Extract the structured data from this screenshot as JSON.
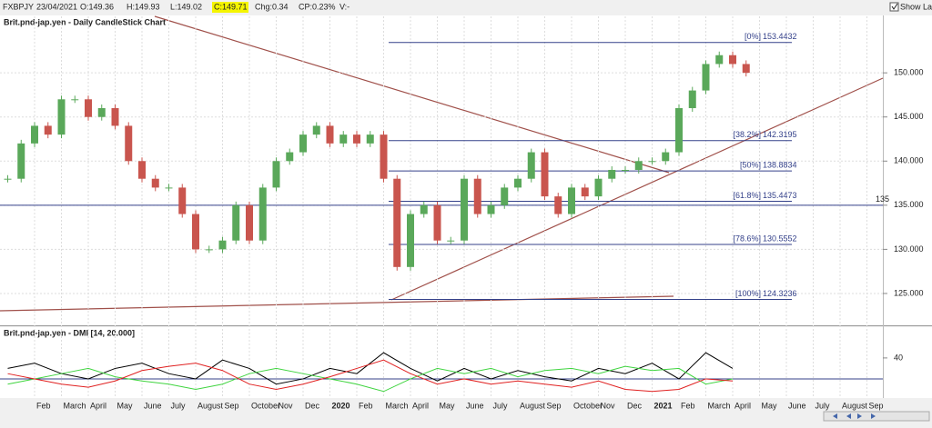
{
  "toolbar": {
    "symbol": "FXBPJY",
    "date": "23/04/2021",
    "open": "O:149.36",
    "high": "H:149.93",
    "low": "L:149.02",
    "close": "C:149.71",
    "change": "Chg:0.34",
    "change_pct": "CP:0.23%",
    "volume": "V:-",
    "show_last": "Show Last"
  },
  "chart_data": {
    "type": "candlestick",
    "title": "Brit.pnd-jap.yen - Daily CandleStick Chart",
    "closes": [
      138,
      142,
      144,
      143,
      147,
      147,
      145,
      146,
      144,
      140,
      138,
      137,
      137,
      134,
      130,
      130,
      131,
      135,
      131,
      137,
      140,
      141,
      143,
      144,
      142,
      143,
      142,
      143,
      138,
      128,
      134,
      135,
      131,
      131,
      138,
      134,
      135,
      137,
      138,
      141,
      136,
      134,
      137,
      136,
      138,
      139,
      139,
      140,
      140,
      141,
      146,
      148,
      151,
      152,
      151,
      150
    ],
    "up_color": "#5aa85a",
    "down_color": "#c9554e",
    "ylim": [
      121.7,
      156.4
    ],
    "yticks": [
      {
        "value": 125,
        "label": "125.000"
      },
      {
        "value": 130,
        "label": "130.000"
      },
      {
        "value": 135,
        "label": "135.000"
      },
      {
        "value": 140,
        "label": "140.000"
      },
      {
        "value": 145,
        "label": "145.000"
      },
      {
        "value": 150,
        "label": "150.000"
      }
    ],
    "fib_levels": [
      {
        "label": "[0%]",
        "value": 153.4432
      },
      {
        "label": "[38.2%]",
        "value": 142.3195
      },
      {
        "label": "[50%]",
        "value": 138.8834
      },
      {
        "label": "[61.8%]",
        "value": 135.4473
      },
      {
        "label": "[78.6%]",
        "value": 130.5552
      },
      {
        "label": "[100%]",
        "value": 124.3236
      }
    ],
    "hline": {
      "value": 135,
      "label": "135"
    },
    "categories": [
      "Feb",
      "March",
      "April",
      "May",
      "June",
      "July",
      "August",
      "Sep",
      "October",
      "Nov",
      "Dec",
      "2020",
      "Feb",
      "March",
      "April",
      "May",
      "June",
      "July",
      "August",
      "Sep",
      "October",
      "Nov",
      "Dec",
      "2021",
      "Feb",
      "March",
      "April",
      "May",
      "June",
      "July",
      "August",
      "Sep"
    ]
  },
  "dmi": {
    "title": "Brit.pnd-jap.yen - DMI [14, 20.000]",
    "ylim": [
      2.6,
      59
    ],
    "yticks": [
      40
    ],
    "level": 20,
    "series": [
      {
        "color": "#000000",
        "values": [
          30,
          35,
          25,
          20,
          30,
          35,
          25,
          20,
          38,
          30,
          15,
          20,
          30,
          25,
          45,
          30,
          18,
          30,
          20,
          28,
          22,
          18,
          30,
          25,
          35,
          20,
          45,
          30
        ]
      },
      {
        "color": "#3fd43f",
        "values": [
          15,
          20,
          25,
          30,
          22,
          18,
          15,
          10,
          15,
          25,
          30,
          25,
          20,
          15,
          8,
          20,
          30,
          25,
          30,
          22,
          28,
          30,
          25,
          32,
          28,
          30,
          15,
          20
        ]
      },
      {
        "color": "#e02020",
        "values": [
          25,
          20,
          15,
          12,
          18,
          28,
          32,
          35,
          28,
          15,
          10,
          15,
          22,
          30,
          38,
          25,
          15,
          20,
          15,
          18,
          15,
          12,
          18,
          10,
          8,
          10,
          20,
          18
        ]
      }
    ]
  }
}
